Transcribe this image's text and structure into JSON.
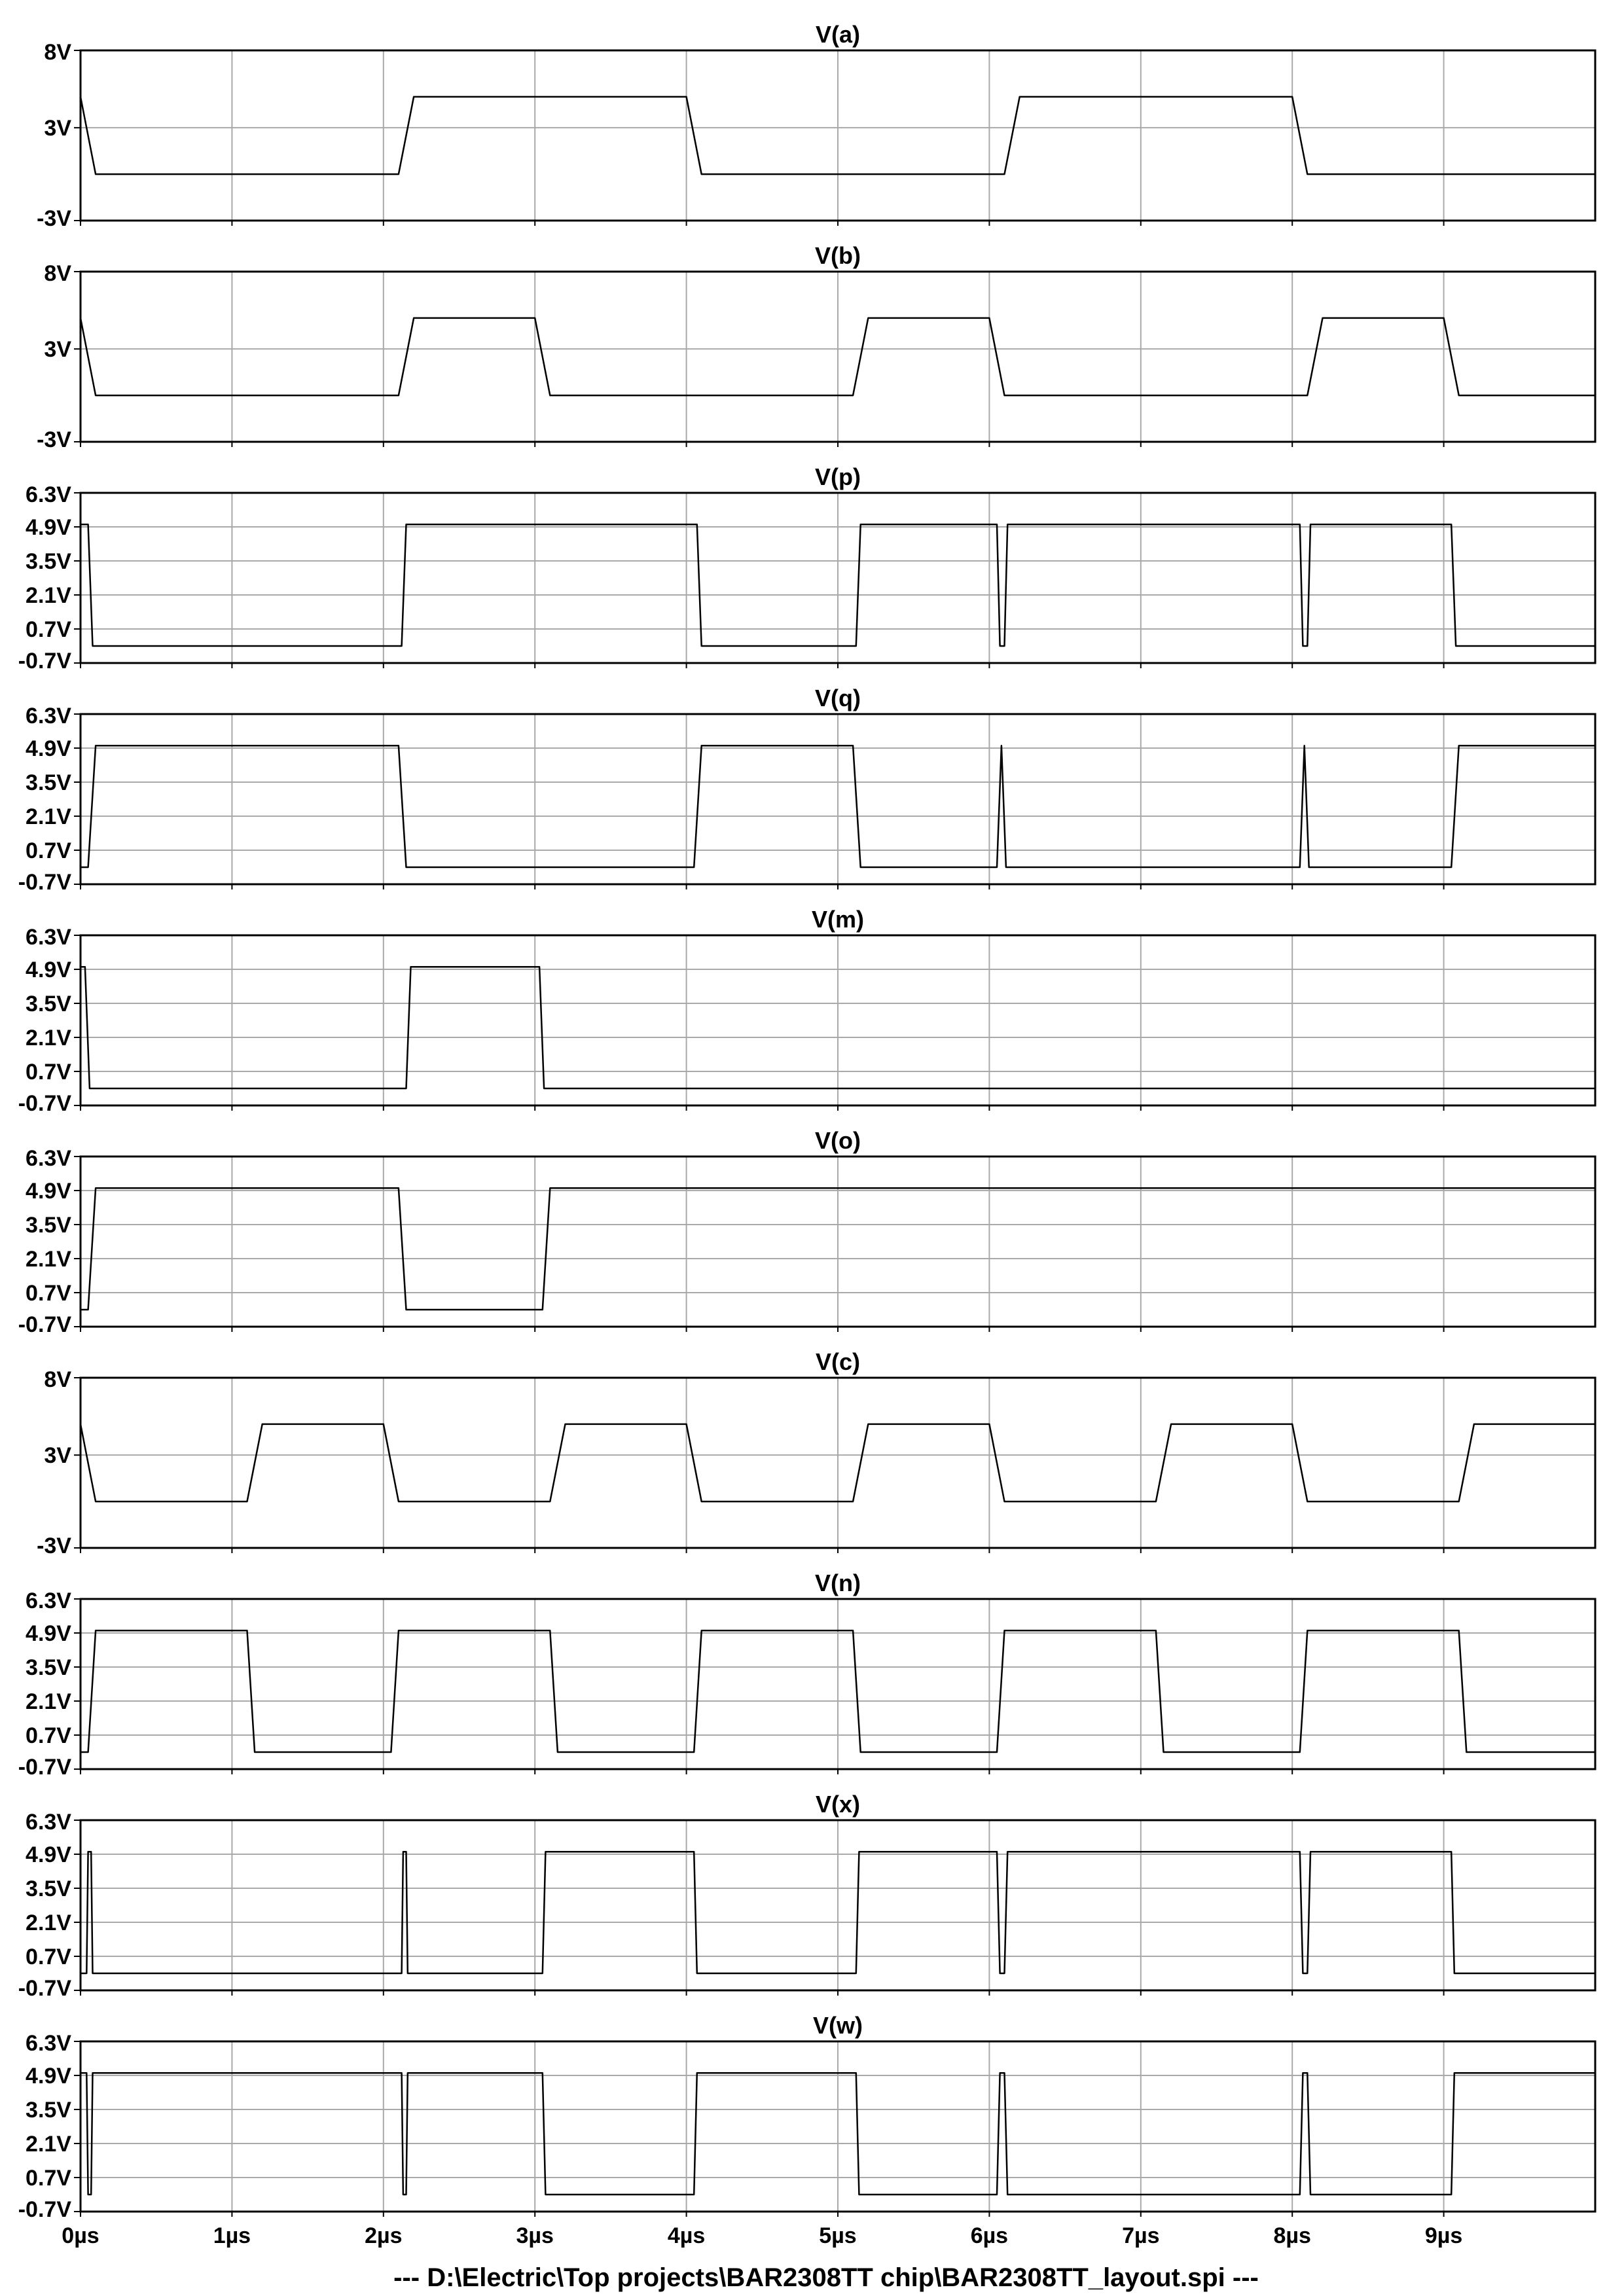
{
  "chart_data": {
    "type": "line",
    "x_unit": "µs",
    "xlim": [
      0,
      10
    ],
    "x_ticks": [
      0,
      1,
      2,
      3,
      4,
      5,
      6,
      7,
      8,
      9
    ],
    "x_tick_labels": [
      "0µs",
      "1µs",
      "2µs",
      "3µs",
      "4µs",
      "5µs",
      "6µs",
      "7µs",
      "8µs",
      "9µs"
    ],
    "footer": "---  D:\\Electric\\Top projects\\BAR2308TT chip\\BAR2308TT_layout.spi  ---",
    "grid": true,
    "panels": [
      {
        "title": "V(a)",
        "ylim": [
          -3,
          8
        ],
        "y_ticks": [
          -3,
          3,
          8
        ],
        "y_tick_labels": [
          "-3V",
          "3V",
          "8V"
        ],
        "points": [
          [
            0,
            5
          ],
          [
            0.1,
            0
          ],
          [
            2.1,
            0
          ],
          [
            2.2,
            5
          ],
          [
            4.0,
            5
          ],
          [
            4.1,
            0
          ],
          [
            6.1,
            0
          ],
          [
            6.2,
            5
          ],
          [
            8.0,
            5
          ],
          [
            8.1,
            0
          ],
          [
            10,
            0
          ]
        ]
      },
      {
        "title": "V(b)",
        "ylim": [
          -3,
          8
        ],
        "y_ticks": [
          -3,
          3,
          8
        ],
        "y_tick_labels": [
          "-3V",
          "3V",
          "8V"
        ],
        "points": [
          [
            0,
            5
          ],
          [
            0.1,
            0
          ],
          [
            2.1,
            0
          ],
          [
            2.2,
            5
          ],
          [
            3.0,
            5
          ],
          [
            3.1,
            0
          ],
          [
            5.1,
            0
          ],
          [
            5.2,
            5
          ],
          [
            6.0,
            5
          ],
          [
            6.1,
            0
          ],
          [
            8.1,
            0
          ],
          [
            8.2,
            5
          ],
          [
            9.0,
            5
          ],
          [
            9.1,
            0
          ],
          [
            10,
            0
          ]
        ]
      },
      {
        "title": "V(p)",
        "ylim": [
          -0.7,
          6.3
        ],
        "y_ticks": [
          -0.7,
          0.7,
          2.1,
          3.5,
          4.9,
          6.3
        ],
        "y_tick_labels": [
          "-0.7V",
          "0.7V",
          "2.1V",
          "3.5V",
          "4.9V",
          "6.3V"
        ],
        "points": [
          [
            0,
            5
          ],
          [
            0.05,
            5
          ],
          [
            0.08,
            0
          ],
          [
            2.12,
            0
          ],
          [
            2.15,
            5
          ],
          [
            4.07,
            5
          ],
          [
            4.1,
            0
          ],
          [
            5.12,
            0
          ],
          [
            5.15,
            5
          ],
          [
            6.05,
            5
          ],
          [
            6.07,
            0
          ],
          [
            6.1,
            0
          ],
          [
            6.12,
            5
          ],
          [
            8.05,
            5
          ],
          [
            8.07,
            0
          ],
          [
            8.1,
            0
          ],
          [
            8.12,
            5
          ],
          [
            9.05,
            5
          ],
          [
            9.08,
            0
          ],
          [
            10,
            0
          ]
        ]
      },
      {
        "title": "V(q)",
        "ylim": [
          -0.7,
          6.3
        ],
        "y_ticks": [
          -0.7,
          0.7,
          2.1,
          3.5,
          4.9,
          6.3
        ],
        "y_tick_labels": [
          "-0.7V",
          "0.7V",
          "2.1V",
          "3.5V",
          "4.9V",
          "6.3V"
        ],
        "points": [
          [
            0,
            0
          ],
          [
            0.05,
            0
          ],
          [
            0.1,
            5
          ],
          [
            2.1,
            5
          ],
          [
            2.15,
            0
          ],
          [
            4.05,
            0
          ],
          [
            4.1,
            5
          ],
          [
            5.1,
            5
          ],
          [
            5.15,
            0
          ],
          [
            6.05,
            0
          ],
          [
            6.08,
            5
          ],
          [
            6.11,
            0
          ],
          [
            8.05,
            0
          ],
          [
            8.08,
            5
          ],
          [
            8.11,
            0
          ],
          [
            9.05,
            0
          ],
          [
            9.1,
            5
          ],
          [
            10,
            5
          ]
        ]
      },
      {
        "title": "V(m)",
        "ylim": [
          -0.7,
          6.3
        ],
        "y_ticks": [
          -0.7,
          0.7,
          2.1,
          3.5,
          4.9,
          6.3
        ],
        "y_tick_labels": [
          "-0.7V",
          "0.7V",
          "2.1V",
          "3.5V",
          "4.9V",
          "6.3V"
        ],
        "points": [
          [
            0,
            5
          ],
          [
            0.03,
            5
          ],
          [
            0.06,
            0
          ],
          [
            2.15,
            0
          ],
          [
            2.18,
            5
          ],
          [
            3.03,
            5
          ],
          [
            3.06,
            0
          ],
          [
            10,
            0
          ]
        ]
      },
      {
        "title": "V(o)",
        "ylim": [
          -0.7,
          6.3
        ],
        "y_ticks": [
          -0.7,
          0.7,
          2.1,
          3.5,
          4.9,
          6.3
        ],
        "y_tick_labels": [
          "-0.7V",
          "0.7V",
          "2.1V",
          "3.5V",
          "4.9V",
          "6.3V"
        ],
        "points": [
          [
            0,
            0
          ],
          [
            0.05,
            0
          ],
          [
            0.1,
            5
          ],
          [
            2.1,
            5
          ],
          [
            2.15,
            0
          ],
          [
            3.05,
            0
          ],
          [
            3.1,
            5
          ],
          [
            10,
            5
          ]
        ]
      },
      {
        "title": "V(c)",
        "ylim": [
          -3,
          8
        ],
        "y_ticks": [
          -3,
          3,
          8
        ],
        "y_tick_labels": [
          "-3V",
          "3V",
          "8V"
        ],
        "points": [
          [
            0,
            5
          ],
          [
            0.1,
            0
          ],
          [
            1.1,
            0
          ],
          [
            1.2,
            5
          ],
          [
            2.0,
            5
          ],
          [
            2.1,
            0
          ],
          [
            3.1,
            0
          ],
          [
            3.2,
            5
          ],
          [
            4.0,
            5
          ],
          [
            4.1,
            0
          ],
          [
            5.1,
            0
          ],
          [
            5.2,
            5
          ],
          [
            6.0,
            5
          ],
          [
            6.1,
            0
          ],
          [
            7.1,
            0
          ],
          [
            7.2,
            5
          ],
          [
            8.0,
            5
          ],
          [
            8.1,
            0
          ],
          [
            9.1,
            0
          ],
          [
            9.2,
            5
          ],
          [
            10,
            5
          ]
        ]
      },
      {
        "title": "V(n)",
        "ylim": [
          -0.7,
          6.3
        ],
        "y_ticks": [
          -0.7,
          0.7,
          2.1,
          3.5,
          4.9,
          6.3
        ],
        "y_tick_labels": [
          "-0.7V",
          "0.7V",
          "2.1V",
          "3.5V",
          "4.9V",
          "6.3V"
        ],
        "points": [
          [
            0,
            0
          ],
          [
            0.05,
            0
          ],
          [
            0.1,
            5
          ],
          [
            1.1,
            5
          ],
          [
            1.15,
            0
          ],
          [
            2.05,
            0
          ],
          [
            2.1,
            5
          ],
          [
            3.1,
            5
          ],
          [
            3.15,
            0
          ],
          [
            4.05,
            0
          ],
          [
            4.1,
            5
          ],
          [
            5.1,
            5
          ],
          [
            5.15,
            0
          ],
          [
            6.05,
            0
          ],
          [
            6.1,
            5
          ],
          [
            7.1,
            5
          ],
          [
            7.15,
            0
          ],
          [
            8.05,
            0
          ],
          [
            8.1,
            5
          ],
          [
            9.1,
            5
          ],
          [
            9.15,
            0
          ],
          [
            10,
            0
          ]
        ]
      },
      {
        "title": "V(x)",
        "ylim": [
          -0.7,
          6.3
        ],
        "y_ticks": [
          -0.7,
          0.7,
          2.1,
          3.5,
          4.9,
          6.3
        ],
        "y_tick_labels": [
          "-0.7V",
          "0.7V",
          "2.1V",
          "3.5V",
          "4.9V",
          "6.3V"
        ],
        "points": [
          [
            0,
            0
          ],
          [
            0.04,
            0
          ],
          [
            0.05,
            5
          ],
          [
            0.07,
            5
          ],
          [
            0.08,
            0
          ],
          [
            2.12,
            0
          ],
          [
            2.13,
            5
          ],
          [
            2.15,
            5
          ],
          [
            2.16,
            0
          ],
          [
            3.05,
            0
          ],
          [
            3.07,
            5
          ],
          [
            4.05,
            5
          ],
          [
            4.07,
            0
          ],
          [
            5.12,
            0
          ],
          [
            5.14,
            5
          ],
          [
            6.05,
            5
          ],
          [
            6.07,
            0
          ],
          [
            6.1,
            0
          ],
          [
            6.12,
            5
          ],
          [
            8.05,
            5
          ],
          [
            8.07,
            0
          ],
          [
            8.1,
            0
          ],
          [
            8.12,
            5
          ],
          [
            9.05,
            5
          ],
          [
            9.07,
            0
          ],
          [
            10,
            0
          ]
        ]
      },
      {
        "title": "V(w)",
        "ylim": [
          -0.7,
          6.3
        ],
        "y_ticks": [
          -0.7,
          0.7,
          2.1,
          3.5,
          4.9,
          6.3
        ],
        "y_tick_labels": [
          "-0.7V",
          "0.7V",
          "2.1V",
          "3.5V",
          "4.9V",
          "6.3V"
        ],
        "points": [
          [
            0,
            5
          ],
          [
            0.04,
            5
          ],
          [
            0.05,
            0
          ],
          [
            0.07,
            0
          ],
          [
            0.08,
            5
          ],
          [
            2.12,
            5
          ],
          [
            2.13,
            0
          ],
          [
            2.15,
            0
          ],
          [
            2.16,
            5
          ],
          [
            3.05,
            5
          ],
          [
            3.07,
            0
          ],
          [
            4.05,
            0
          ],
          [
            4.07,
            5
          ],
          [
            5.12,
            5
          ],
          [
            5.14,
            0
          ],
          [
            6.05,
            0
          ],
          [
            6.07,
            5
          ],
          [
            6.1,
            5
          ],
          [
            6.12,
            0
          ],
          [
            8.05,
            0
          ],
          [
            8.07,
            5
          ],
          [
            8.1,
            5
          ],
          [
            8.12,
            0
          ],
          [
            9.05,
            0
          ],
          [
            9.07,
            5
          ],
          [
            10,
            5
          ]
        ]
      }
    ]
  }
}
